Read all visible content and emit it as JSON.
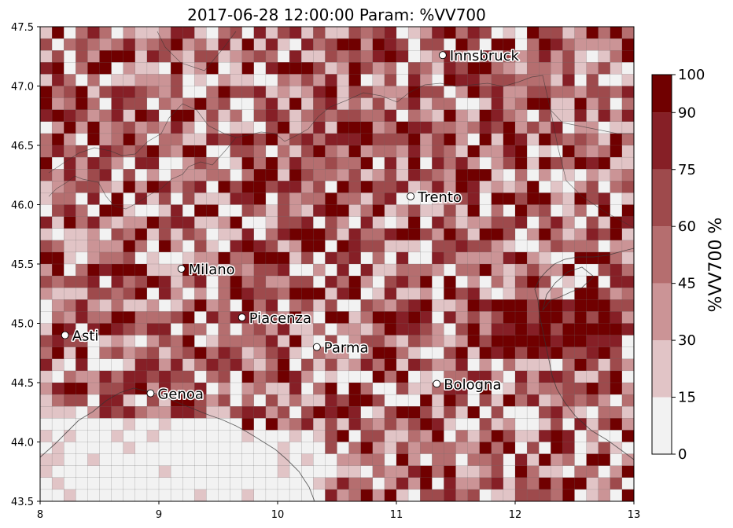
{
  "title": "2017-06-28 12:00:00 Param: %VV700",
  "map": {
    "x_ticks": [
      8,
      9,
      10,
      11,
      12,
      13
    ],
    "y_ticks": [
      43.5,
      44.0,
      44.5,
      45.0,
      45.5,
      46.0,
      46.5,
      47.0,
      47.5
    ],
    "x_tick_labels": [
      "8",
      "9",
      "10",
      "11",
      "12",
      "13"
    ],
    "y_tick_labels": [
      "43.5",
      "44.0",
      "44.5",
      "45.0",
      "45.5",
      "46.0",
      "46.5",
      "47.0",
      "47.5"
    ],
    "xlim": [
      8,
      13
    ],
    "ylim": [
      43.5,
      47.5
    ],
    "grid_cols": 50,
    "grid_rows": 40
  },
  "colorbar": {
    "label": "%VV700  %",
    "levels": [
      0,
      15,
      30,
      45,
      60,
      75,
      90,
      100
    ],
    "level_labels": [
      "0",
      "15",
      "30",
      "45",
      "60",
      "75",
      "90",
      "100"
    ],
    "colors": [
      "#f2f2f2",
      "#e1c4c6",
      "#cb9496",
      "#b56e6f",
      "#9e4a4c",
      "#861f26",
      "#700000"
    ]
  },
  "cities": [
    {
      "name": "Innsbruck",
      "lon": 11.39,
      "lat": 47.26
    },
    {
      "name": "Trento",
      "lon": 11.12,
      "lat": 46.07
    },
    {
      "name": "Milano",
      "lon": 9.19,
      "lat": 45.46
    },
    {
      "name": "Piacenza",
      "lon": 9.7,
      "lat": 45.05
    },
    {
      "name": "Asti",
      "lon": 8.21,
      "lat": 44.9
    },
    {
      "name": "Parma",
      "lon": 10.33,
      "lat": 44.8
    },
    {
      "name": "Bologna",
      "lon": 11.34,
      "lat": 44.49
    },
    {
      "name": "Genoa",
      "lon": 8.93,
      "lat": 44.41
    }
  ]
}
